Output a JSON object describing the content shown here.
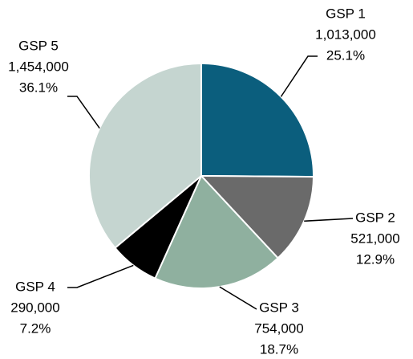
{
  "chart_data": {
    "type": "pie",
    "categories": [
      "GSP 1",
      "GSP 2",
      "GSP 3",
      "GSP 4",
      "GSP 5"
    ],
    "values": [
      1013000,
      521000,
      754000,
      290000,
      1454000
    ],
    "value_labels": [
      "1,013,000",
      "521,000",
      "754,000",
      "290,000",
      "1,454,000"
    ],
    "percent_labels": [
      "25.1%",
      "12.9%",
      "18.7%",
      "7.2%",
      "36.1%"
    ],
    "colors": [
      "#0b5e7d",
      "#6a6a6a",
      "#8fb09f",
      "#000000",
      "#c5d5d0"
    ]
  }
}
